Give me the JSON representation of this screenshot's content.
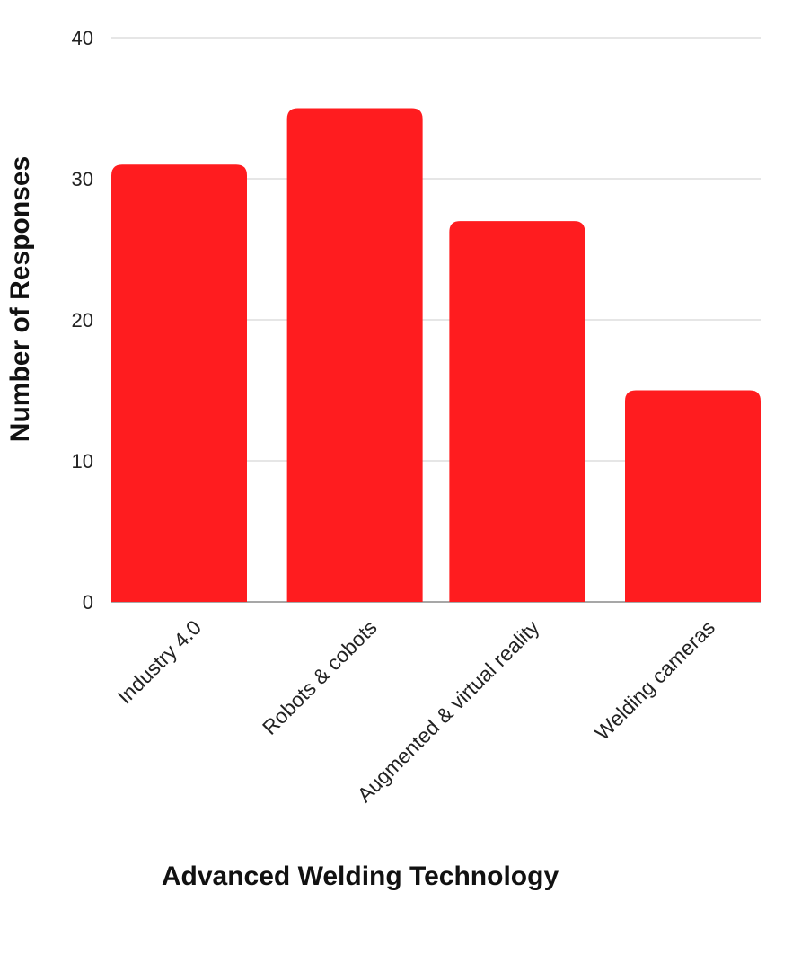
{
  "chart_data": {
    "type": "bar",
    "categories": [
      "Industry 4.0",
      "Robots & cobots",
      "Augmented & virtual reality",
      "Welding cameras"
    ],
    "values": [
      31,
      35,
      27,
      15
    ],
    "title": "",
    "xlabel": "Advanced Welding Technology",
    "ylabel": "Number of Responses",
    "ylim": [
      0,
      40
    ],
    "yticks": [
      0,
      10,
      20,
      30,
      40
    ],
    "grid": true,
    "legend": "none",
    "colors": {
      "bar": "#ff1c1f",
      "grid": "#d6d6d6",
      "baseline": "#8a8a8a"
    }
  }
}
